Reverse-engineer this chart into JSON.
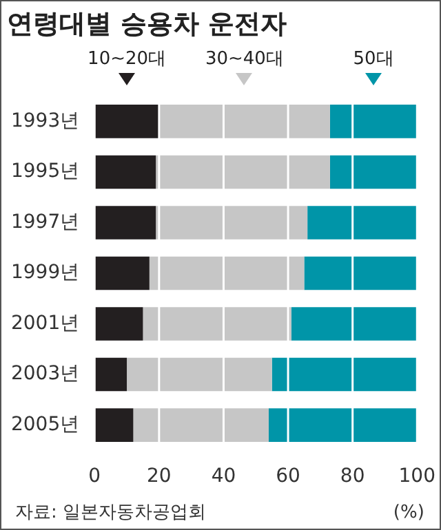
{
  "chart_data": {
    "type": "bar",
    "orientation": "horizontal",
    "stacked": true,
    "title": "연령대별 승용차 운전자",
    "xlabel": "(%)",
    "categories": [
      "1993년",
      "1995년",
      "1997년",
      "1999년",
      "2001년",
      "2003년",
      "2005년"
    ],
    "series": [
      {
        "name": "10~20대",
        "color": "#231f20",
        "values": [
          20,
          19,
          19,
          17,
          15,
          10,
          12
        ]
      },
      {
        "name": "30~40대",
        "color": "#c6c6c6",
        "values": [
          53,
          54,
          47,
          48,
          46,
          45,
          42
        ]
      },
      {
        "name": "50대",
        "color": "#0095a8",
        "values": [
          27,
          27,
          34,
          35,
          39,
          45,
          46
        ]
      }
    ],
    "xlim": [
      0,
      100
    ],
    "xticks": [
      0,
      20,
      40,
      60,
      80,
      100
    ],
    "grid": "x",
    "legend": "top",
    "annotations": [
      "자료: 일본자동차공업회"
    ]
  }
}
